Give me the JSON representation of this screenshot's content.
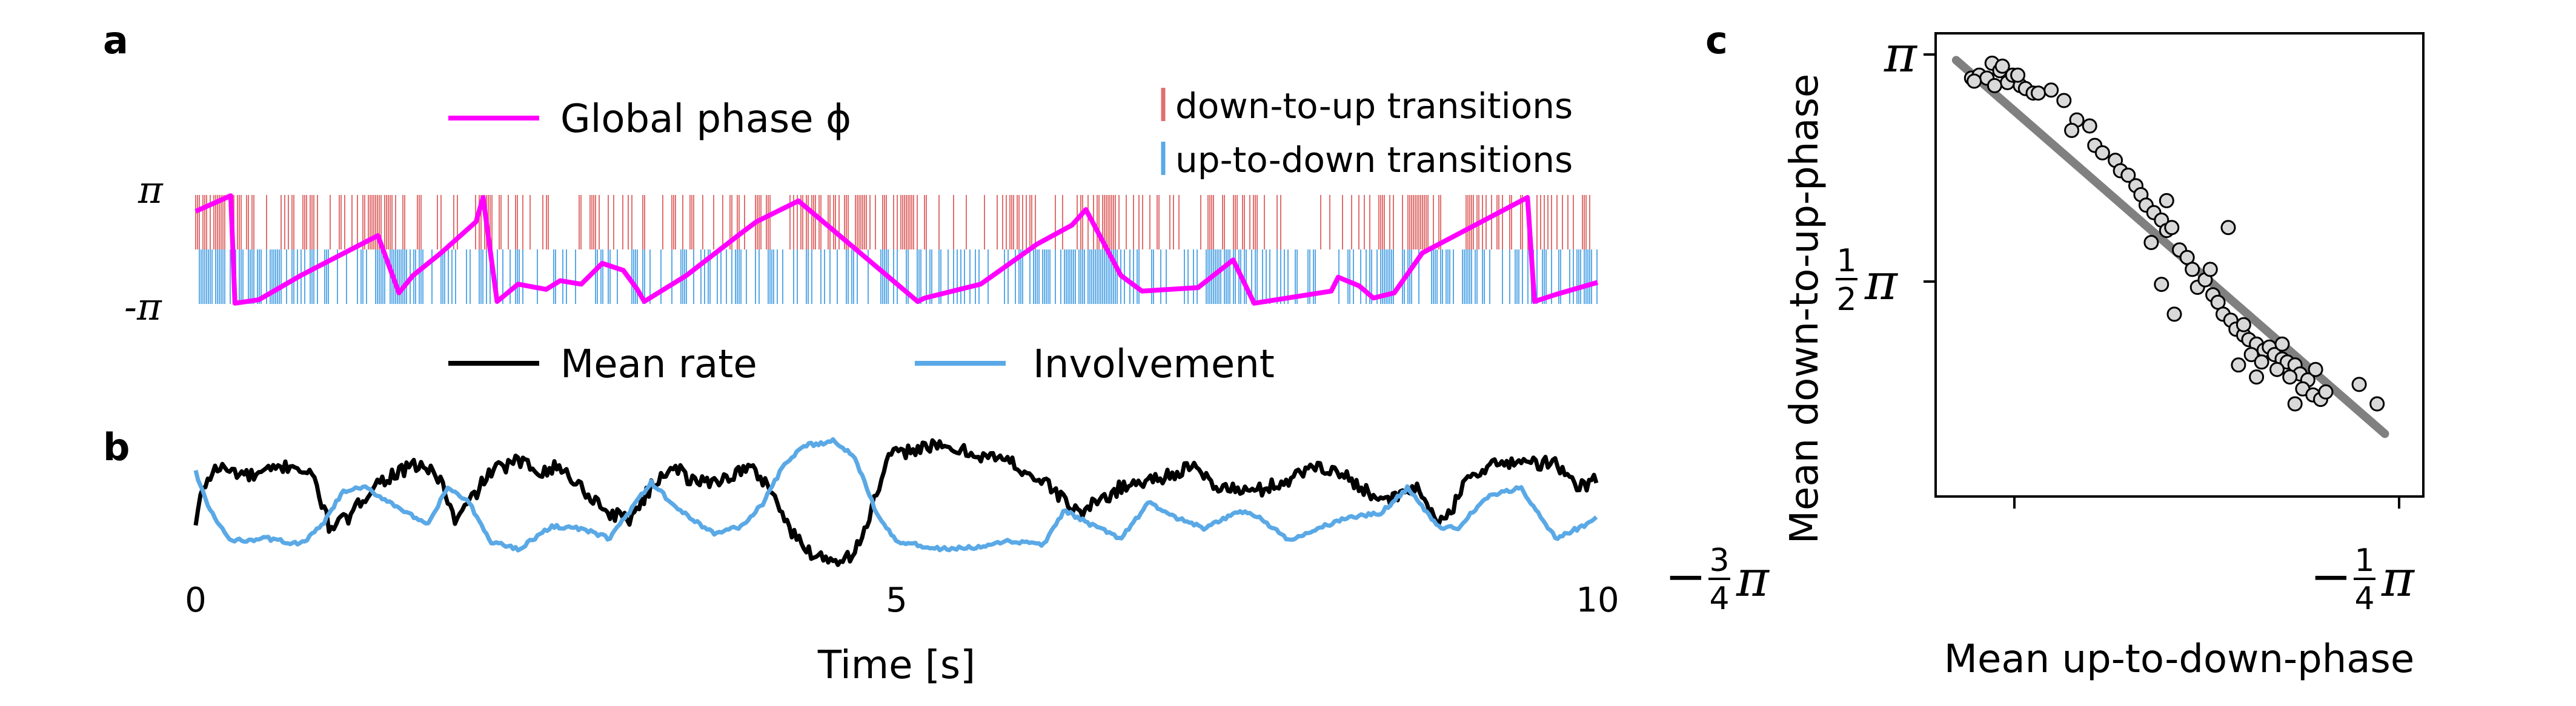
{
  "panels": {
    "a": "a",
    "b": "b",
    "c": "c"
  },
  "colors": {
    "phase": "#ff00ff",
    "down_to_up": "#e07070",
    "up_to_down": "#5aa9e6",
    "mean_rate": "#000000",
    "involvement": "#5aa9e6",
    "scatter_fill": "#d9d9d9",
    "fit_line": "#808080"
  },
  "legend_a": {
    "phase": "Global phase ϕ",
    "down_to_up": "down-to-up transitions",
    "up_to_down": "up-to-down transitions"
  },
  "legend_b": {
    "mean_rate": "Mean rate",
    "involvement": "Involvement"
  },
  "chart_data": [
    {
      "panel": "a",
      "type": "line",
      "ytick_labels": [
        "π",
        "-π"
      ],
      "xlim": [
        0,
        10
      ],
      "ylim": [
        -3.1416,
        3.1416
      ],
      "series": [
        {
          "name": "Global phase ϕ",
          "x": [
            0.0,
            0.25,
            0.28,
            0.45,
            0.75,
            1.3,
            1.45,
            1.55,
            1.75,
            2.0,
            2.05,
            2.15,
            2.3,
            2.5,
            2.6,
            2.75,
            2.9,
            3.05,
            3.15,
            3.2,
            3.5,
            3.9,
            4.0,
            4.3,
            5.15,
            5.2,
            5.6,
            6.0,
            6.25,
            6.35,
            6.6,
            6.75,
            7.15,
            7.4,
            7.55,
            8.1,
            8.15,
            8.3,
            8.4,
            8.55,
            8.75,
            9.5,
            9.55,
            9.7,
            10.0
          ],
          "y": [
            2.2,
            3.1,
            -3.1,
            -2.9,
            -1.5,
            0.8,
            -2.5,
            -1.5,
            -0.2,
            1.6,
            3.0,
            -3.0,
            -2.0,
            -2.3,
            -1.8,
            -2.0,
            -0.8,
            -1.2,
            -2.3,
            -3.0,
            -1.5,
            1.0,
            1.6,
            2.8,
            -3.0,
            -2.8,
            -2.0,
            0.3,
            1.4,
            2.3,
            -1.5,
            -2.4,
            -2.2,
            -0.6,
            -3.1,
            -2.4,
            -1.6,
            -2.1,
            -2.8,
            -2.5,
            -0.2,
            3.0,
            -3.0,
            -2.6,
            -1.9
          ]
        }
      ],
      "transitions": [
        {
          "name": "down-to-up transitions",
          "band": "upper",
          "density": [
            0.8,
            0.5,
            0.3,
            0.4,
            0.3,
            0.5,
            0.9,
            0.4,
            0.3,
            0.3,
            0.4,
            0.3,
            0.2,
            0.3,
            0.5,
            0.3,
            0.2,
            0.3,
            0.2,
            0.5,
            0.4,
            0.6,
            0.7,
            0.3,
            0.3,
            0.5,
            0.2,
            0.3,
            0.4,
            0.4,
            0.2,
            0.2,
            0.6,
            0.4,
            0.3,
            0.2,
            0.3,
            0.5,
            0.4,
            0.2,
            0.2,
            0.3,
            0.4,
            0.8,
            0.4,
            0.5,
            0.3,
            0.3,
            0.2,
            0.4
          ]
        },
        {
          "name": "up-to-down transitions",
          "band": "lower",
          "density": [
            0.7,
            0.6,
            0.6,
            0.5,
            0.4,
            0.3,
            0.4,
            0.8,
            0.6,
            0.4,
            0.5,
            0.4,
            0.3,
            0.3,
            0.5,
            0.4,
            0.3,
            0.3,
            0.3,
            0.4,
            0.5,
            0.4,
            0.3,
            0.3,
            0.2,
            0.4,
            0.3,
            0.4,
            0.3,
            0.6,
            0.7,
            0.9,
            0.6,
            0.5,
            0.3,
            0.3,
            0.7,
            0.6,
            0.4,
            0.5,
            0.3,
            0.4,
            0.7,
            0.6,
            0.6,
            0.5,
            0.3,
            0.4,
            0.3,
            0.6
          ]
        }
      ]
    },
    {
      "panel": "b",
      "type": "line",
      "xlabel": "Time [s]",
      "xticks": [
        0,
        5,
        10
      ],
      "xlim": [
        0,
        10
      ],
      "ylim": [
        0,
        1
      ],
      "series": [
        {
          "name": "Mean rate",
          "x": [
            0.0,
            0.05,
            0.15,
            0.4,
            0.7,
            0.85,
            0.95,
            1.1,
            1.25,
            1.4,
            1.6,
            1.75,
            1.85,
            1.95,
            2.1,
            2.3,
            2.45,
            2.6,
            2.75,
            2.95,
            3.1,
            3.25,
            3.4,
            3.55,
            3.75,
            3.95,
            4.1,
            4.25,
            4.4,
            4.55,
            4.7,
            4.8,
            4.95,
            5.2,
            5.5,
            5.8,
            6.1,
            6.3,
            6.6,
            6.9,
            7.1,
            7.3,
            7.55,
            7.8,
            8.0,
            8.2,
            8.5,
            8.7,
            8.9,
            9.1,
            9.4,
            9.7,
            9.85,
            10.0
          ],
          "y": [
            0.3,
            0.55,
            0.68,
            0.62,
            0.7,
            0.6,
            0.3,
            0.35,
            0.55,
            0.63,
            0.7,
            0.6,
            0.32,
            0.45,
            0.65,
            0.72,
            0.66,
            0.68,
            0.55,
            0.38,
            0.35,
            0.55,
            0.7,
            0.58,
            0.6,
            0.68,
            0.55,
            0.25,
            0.12,
            0.08,
            0.12,
            0.35,
            0.75,
            0.82,
            0.78,
            0.72,
            0.55,
            0.38,
            0.55,
            0.62,
            0.68,
            0.55,
            0.52,
            0.6,
            0.7,
            0.62,
            0.45,
            0.55,
            0.3,
            0.65,
            0.72,
            0.7,
            0.55,
            0.6
          ]
        },
        {
          "name": "Involvement",
          "x": [
            0.0,
            0.1,
            0.25,
            0.5,
            0.75,
            0.9,
            1.05,
            1.2,
            1.45,
            1.65,
            1.8,
            1.95,
            2.1,
            2.3,
            2.55,
            2.75,
            2.95,
            3.1,
            3.25,
            3.45,
            3.7,
            3.9,
            4.05,
            4.2,
            4.35,
            4.55,
            4.7,
            4.85,
            5.0,
            5.3,
            5.6,
            5.8,
            6.05,
            6.2,
            6.4,
            6.6,
            6.8,
            7.0,
            7.2,
            7.45,
            7.6,
            7.8,
            8.0,
            8.2,
            8.45,
            8.65,
            8.85,
            9.0,
            9.2,
            9.45,
            9.7,
            9.85,
            10.0
          ],
          "y": [
            0.65,
            0.4,
            0.2,
            0.22,
            0.18,
            0.3,
            0.52,
            0.55,
            0.42,
            0.3,
            0.55,
            0.45,
            0.2,
            0.15,
            0.3,
            0.28,
            0.22,
            0.4,
            0.58,
            0.4,
            0.25,
            0.3,
            0.45,
            0.7,
            0.82,
            0.85,
            0.75,
            0.4,
            0.2,
            0.15,
            0.16,
            0.2,
            0.18,
            0.4,
            0.3,
            0.22,
            0.45,
            0.35,
            0.28,
            0.4,
            0.35,
            0.2,
            0.28,
            0.35,
            0.38,
            0.55,
            0.3,
            0.28,
            0.48,
            0.55,
            0.22,
            0.28,
            0.35
          ]
        }
      ]
    },
    {
      "panel": "c",
      "type": "scatter",
      "xlabel": "Mean up-to-down-phase",
      "ylabel": "Mean down-to-up-phase",
      "xtick_labels": [
        "−3/4π",
        "−1/4π"
      ],
      "ytick_labels": [
        "π",
        "1/2π"
      ],
      "xlim": [
        -2.5,
        -0.6
      ],
      "ylim": [
        0.2,
        3.3
      ],
      "points_x": [
        -2.36,
        -2.33,
        -2.3,
        -2.28,
        -2.25,
        -2.22,
        -2.2,
        -2.17,
        -2.15,
        -2.12,
        -2.35,
        -2.27,
        -2.24,
        -2.18,
        -2.1,
        -2.05,
        -2.0,
        -1.95,
        -1.97,
        -1.9,
        -1.88,
        -1.85,
        -1.8,
        -1.78,
        -1.75,
        -1.72,
        -1.7,
        -1.68,
        -1.65,
        -1.62,
        -1.6,
        -1.66,
        -1.58,
        -1.55,
        -1.52,
        -1.5,
        -1.48,
        -1.45,
        -1.42,
        -1.4,
        -1.38,
        -1.35,
        -1.33,
        -1.3,
        -1.28,
        -1.25,
        -1.22,
        -1.2,
        -1.18,
        -1.15,
        -1.13,
        -1.1,
        -1.08,
        -1.05,
        -1.32,
        -1.27,
        -1.23,
        -1.17,
        -1.12,
        -1.07,
        -1.03,
        -1.0,
        -0.98,
        -1.25,
        -1.15,
        -1.1,
        -1.3,
        -1.02,
        -0.85,
        -0.78,
        -1.62,
        -1.43,
        -1.57,
        -1.6,
        -1.36
      ],
      "points_y": [
        3.0,
        3.02,
        3.0,
        3.1,
        3.05,
        2.97,
        3.02,
        2.95,
        2.93,
        2.9,
        2.98,
        2.95,
        3.08,
        3.02,
        2.9,
        2.92,
        2.85,
        2.72,
        2.65,
        2.68,
        2.55,
        2.5,
        2.45,
        2.38,
        2.35,
        2.28,
        2.22,
        2.15,
        2.1,
        2.05,
        1.98,
        1.9,
        2.0,
        1.85,
        1.8,
        1.72,
        1.6,
        1.65,
        1.55,
        1.5,
        1.42,
        1.38,
        1.32,
        1.28,
        1.25,
        1.22,
        1.18,
        1.2,
        1.15,
        1.12,
        1.1,
        1.08,
        1.02,
        0.98,
        1.08,
        1.15,
        1.1,
        1.05,
        1.0,
        0.92,
        0.88,
        0.85,
        0.9,
        1.0,
        1.22,
        0.82,
        1.35,
        1.05,
        0.95,
        0.82,
        1.62,
        1.72,
        1.42,
        2.18,
        2.0
      ],
      "fit_line": {
        "x": [
          -2.42,
          -0.75
        ],
        "y": [
          3.12,
          0.62
        ]
      }
    }
  ]
}
